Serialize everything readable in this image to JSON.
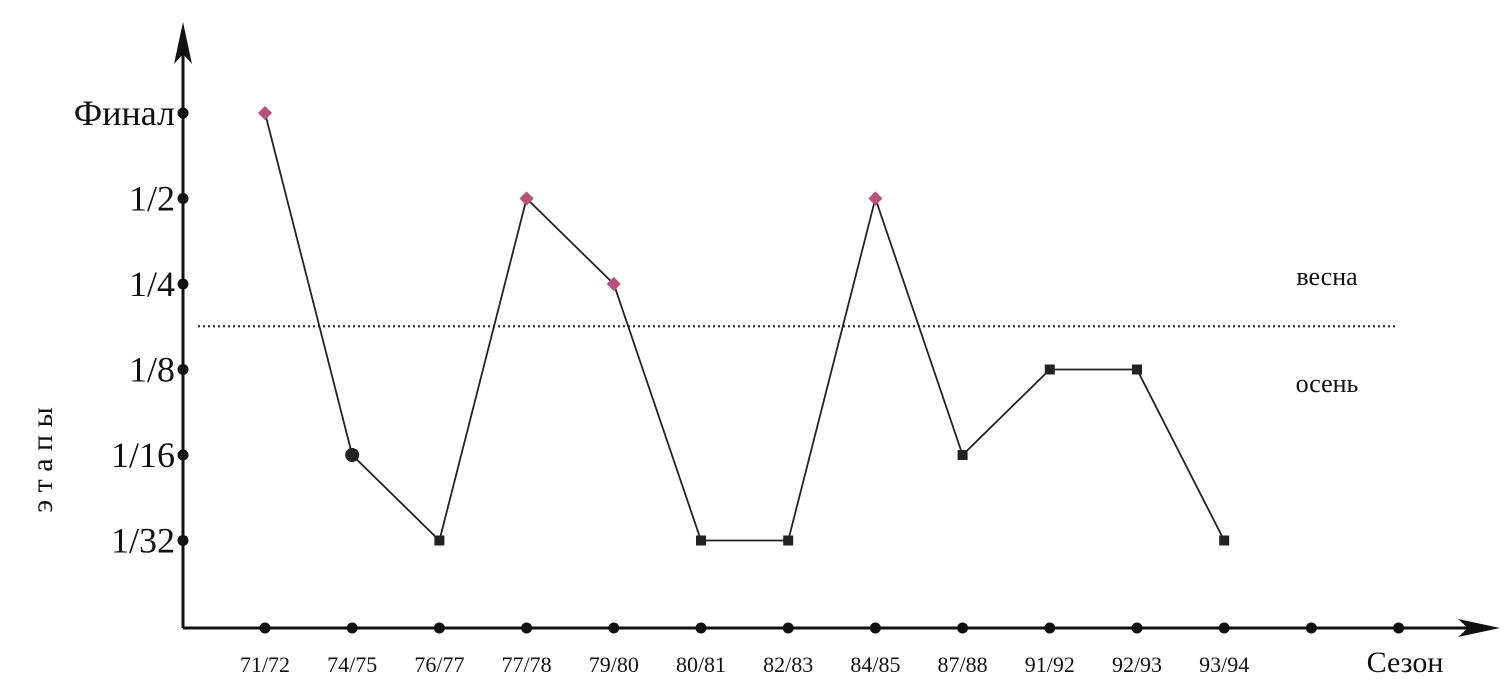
{
  "chart_data": {
    "type": "line",
    "title": "",
    "xlabel": "Сезон",
    "ylabel": "э т а п ы",
    "categories": [
      "71/72",
      "74/75",
      "76/77",
      "77/78",
      "79/80",
      "80/81",
      "82/83",
      "84/85",
      "87/88",
      "91/92",
      "92/93",
      "93/94"
    ],
    "y_levels": [
      "1/32",
      "1/16",
      "1/8",
      "1/4",
      "1/2",
      "Финал"
    ],
    "series": [
      {
        "values": [
          "Финал",
          "1/16",
          "1/32",
          "1/2",
          "1/4",
          "1/32",
          "1/32",
          "1/2",
          "1/16",
          "1/8",
          "1/8",
          "1/32"
        ]
      }
    ],
    "threshold": {
      "between": [
        "1/8",
        "1/4"
      ],
      "label_above": "весна",
      "label_below": "осень"
    },
    "extra_x_ticks": 2,
    "grid": false,
    "colors": {
      "line": "#222222",
      "spring_marker": "#b5547a",
      "autumn_marker": "#222222",
      "axis": "#111111"
    }
  }
}
